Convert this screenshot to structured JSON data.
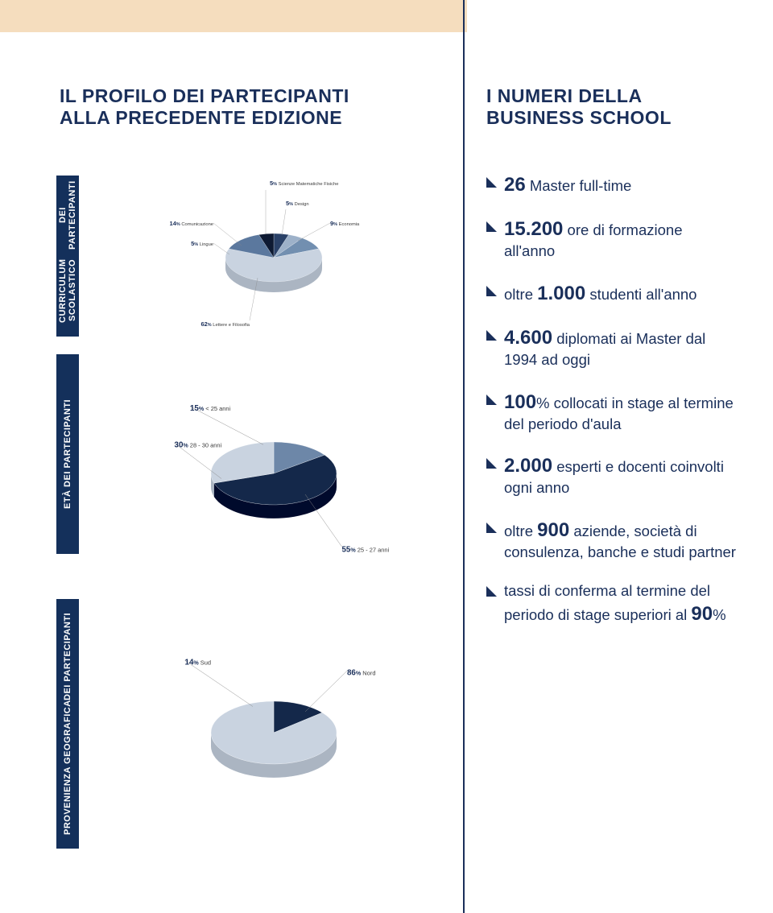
{
  "band_color": "#f5ddbe",
  "rule_color": "#1a2f5a",
  "title_left_l1": "IL PROFILO DEI PARTECIPANTI",
  "title_left_l2": "ALLA PRECEDENTE EDIZIONE",
  "title_right_l1": "I NUMERI DELLA",
  "title_right_l2": "BUSINESS SCHOOL",
  "sidebar": {
    "curricula_l1": "CURRICULUM SCOLASTICO",
    "curricula_l2": "DEI PARTECIPANTI",
    "age": "ETÀ DEI PARTECIPANTI",
    "geo_l1": "PROVENIENZA GEOGRAFICA",
    "geo_l2": "DEI PARTECIPANTI"
  },
  "chart1": {
    "type": "pie",
    "slices": [
      {
        "label": "Lettere e Filosofia",
        "pct": 62,
        "color": "#c9d3e0"
      },
      {
        "label": "Comunicazione",
        "pct": 14,
        "color": "#5b789e"
      },
      {
        "label": "Lingue",
        "pct": 5,
        "color": "#0e1a33"
      },
      {
        "label": "Scienze Matematiche Fisiche",
        "pct": 5,
        "color": "#2a4168"
      },
      {
        "label": "Design",
        "pct": 5,
        "color": "#9db1c9"
      },
      {
        "label": "Economia",
        "pct": 9,
        "color": "#728fb0"
      }
    ],
    "diskfill": "#e6ebf2"
  },
  "chart2": {
    "type": "pie",
    "slices": [
      {
        "label": "25 - 27 anni",
        "pct": 55,
        "color": "#14284a"
      },
      {
        "label": "< 25 anni",
        "pct": 15,
        "color": "#6d87a8"
      },
      {
        "label": "28 - 30 anni",
        "pct": 30,
        "color": "#c9d3e0"
      }
    ],
    "diskfill": "#e6ebf2"
  },
  "chart3": {
    "type": "pie",
    "slices": [
      {
        "label": "Nord",
        "pct": 86,
        "color": "#c9d3e0"
      },
      {
        "label": "Sud",
        "pct": 14,
        "color": "#14284a"
      }
    ],
    "diskfill": "#e6ebf2"
  },
  "stats": [
    {
      "big": "26",
      "rest": " Master full-time"
    },
    {
      "big": "15.200",
      "rest": " ore di formazione all'anno",
      "pre": ""
    },
    {
      "pre": "oltre ",
      "big": "1.000",
      "rest": " studenti all'anno"
    },
    {
      "big": "4.600",
      "rest": " diplomati ai Master dal 1994 ad oggi"
    },
    {
      "big": "100",
      "after_pct": "%",
      "rest": " collocati in stage al termine del periodo d'aula"
    },
    {
      "big": "2.000",
      "rest": " esperti e docenti coinvolti ogni anno"
    },
    {
      "pre": "oltre ",
      "big": "900",
      "rest": " aziende, società di consulenza, banche e studi partner"
    },
    {
      "pre": "tassi di conferma al termine del periodo di stage superiori al ",
      "big": "90",
      "after_pct": "%"
    }
  ]
}
